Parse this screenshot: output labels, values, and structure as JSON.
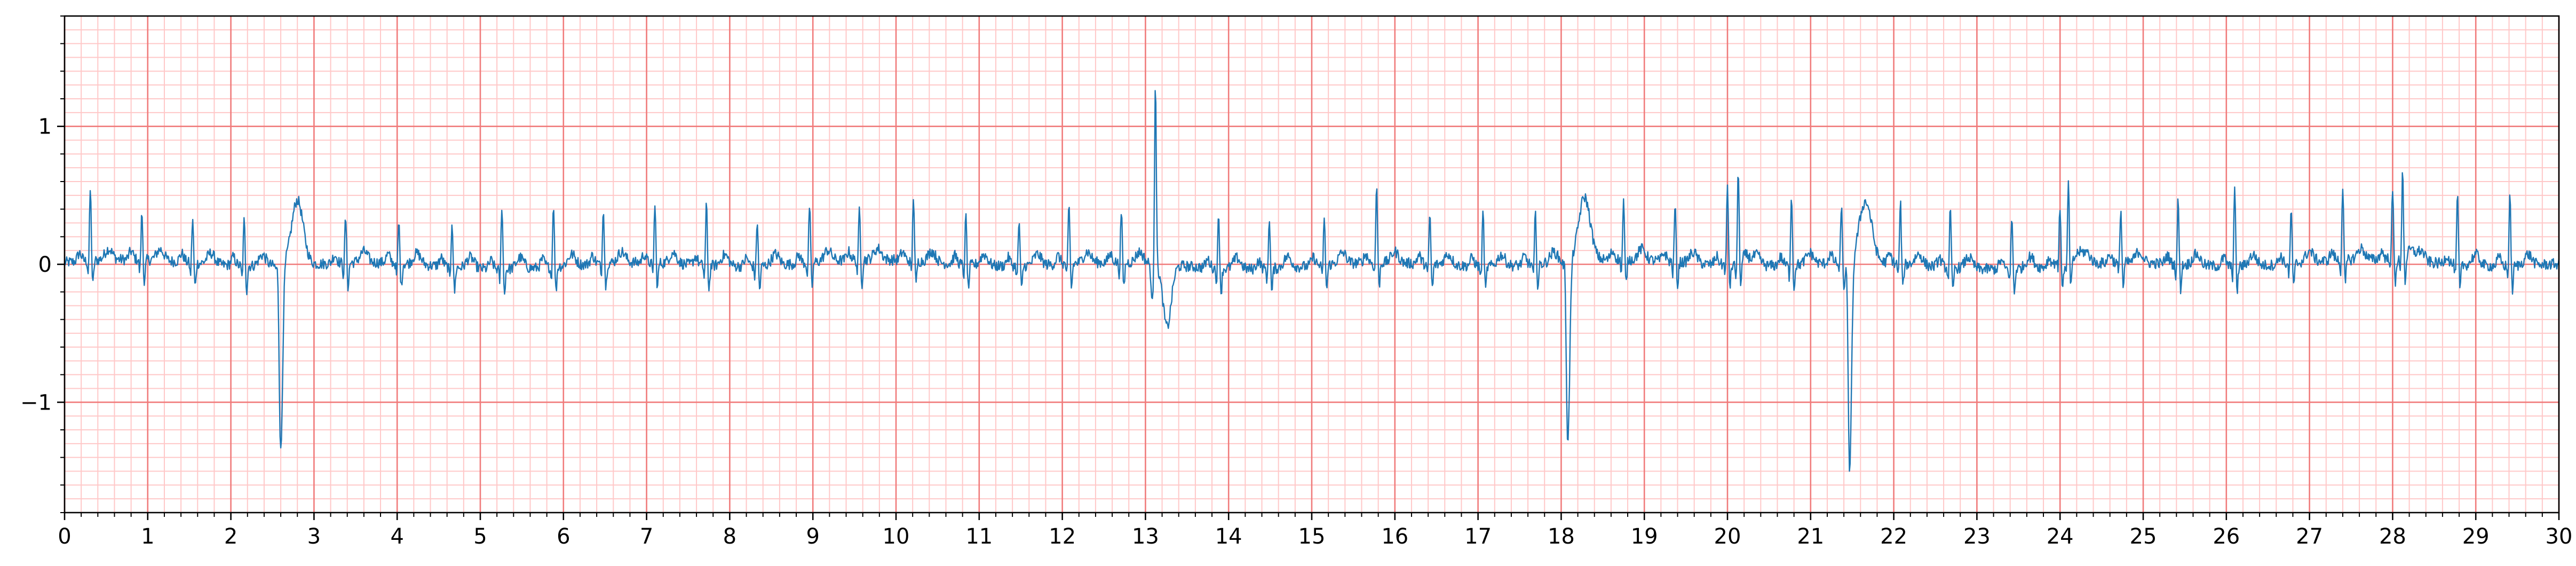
{
  "chart_data": {
    "type": "line",
    "title": "",
    "xlabel": "",
    "ylabel": "",
    "xlim": [
      0,
      30
    ],
    "ylim": [
      -1.8,
      1.8
    ],
    "x_ticks": [
      "0",
      "1",
      "2",
      "3",
      "4",
      "5",
      "6",
      "7",
      "8",
      "9",
      "10",
      "11",
      "12",
      "13",
      "14",
      "15",
      "16",
      "17",
      "18",
      "19",
      "20",
      "21",
      "22",
      "23",
      "24",
      "25",
      "26",
      "27",
      "28",
      "29",
      "30"
    ],
    "y_ticks": [
      "1",
      "0",
      "−1"
    ],
    "y_tick_values": [
      1,
      0,
      -1
    ],
    "grid": {
      "major_x_step": 1,
      "minor_x_step": 0.2,
      "major_y_step": 1,
      "minor_y_step": 0.1,
      "major_color": "#f07b7b",
      "minor_color": "#ffc8c8"
    },
    "series": [
      {
        "color": "#1f77b4",
        "baseline_noise": 0.04,
        "normal_beats": [
          {
            "t": 0.31,
            "r": 0.52
          },
          {
            "t": 0.93,
            "r": 0.34
          },
          {
            "t": 1.54,
            "r": 0.32
          },
          {
            "t": 2.16,
            "r": 0.33
          },
          {
            "t": 3.38,
            "r": 0.33
          },
          {
            "t": 4.02,
            "r": 0.3
          },
          {
            "t": 4.66,
            "r": 0.34
          },
          {
            "t": 5.26,
            "r": 0.47
          },
          {
            "t": 5.88,
            "r": 0.47
          },
          {
            "t": 6.48,
            "r": 0.42
          },
          {
            "t": 7.1,
            "r": 0.42
          },
          {
            "t": 7.72,
            "r": 0.44
          },
          {
            "t": 8.33,
            "r": 0.33
          },
          {
            "t": 8.96,
            "r": 0.42
          },
          {
            "t": 9.56,
            "r": 0.37
          },
          {
            "t": 10.21,
            "r": 0.48
          },
          {
            "t": 10.84,
            "r": 0.35
          },
          {
            "t": 11.48,
            "r": 0.33
          },
          {
            "t": 12.08,
            "r": 0.42
          },
          {
            "t": 12.71,
            "r": 0.37
          },
          {
            "t": 13.88,
            "r": 0.38
          },
          {
            "t": 14.49,
            "r": 0.38
          },
          {
            "t": 15.15,
            "r": 0.33
          },
          {
            "t": 15.78,
            "r": 0.57
          },
          {
            "t": 16.42,
            "r": 0.37
          },
          {
            "t": 17.06,
            "r": 0.4
          },
          {
            "t": 17.69,
            "r": 0.37
          },
          {
            "t": 18.75,
            "r": 0.42
          },
          {
            "t": 19.37,
            "r": 0.42
          },
          {
            "t": 20.0,
            "r": 0.5
          },
          {
            "t": 20.13,
            "r": 0.68
          },
          {
            "t": 20.77,
            "r": 0.53
          },
          {
            "t": 21.37,
            "r": 0.42
          },
          {
            "t": 22.08,
            "r": 0.45
          },
          {
            "t": 22.68,
            "r": 0.42
          },
          {
            "t": 23.42,
            "r": 0.38
          },
          {
            "t": 24.0,
            "r": 0.4
          },
          {
            "t": 24.1,
            "r": 0.6
          },
          {
            "t": 24.73,
            "r": 0.4
          },
          {
            "t": 25.42,
            "r": 0.47
          },
          {
            "t": 26.1,
            "r": 0.57
          },
          {
            "t": 26.78,
            "r": 0.4
          },
          {
            "t": 27.4,
            "r": 0.55
          },
          {
            "t": 28.0,
            "r": 0.46
          },
          {
            "t": 28.12,
            "r": 0.68
          },
          {
            "t": 28.78,
            "r": 0.5
          },
          {
            "t": 29.41,
            "r": 0.52
          }
        ],
        "ectopic_beats": [
          {
            "t": 2.6,
            "min": -1.12,
            "max": 0.47
          },
          {
            "t": 18.08,
            "min": -1.08,
            "max": 0.46
          },
          {
            "t": 21.47,
            "min": -1.28,
            "max": 0.42
          }
        ],
        "spikes": [
          {
            "t": 13.12,
            "max": 1.37,
            "min": -0.45
          }
        ]
      }
    ]
  }
}
